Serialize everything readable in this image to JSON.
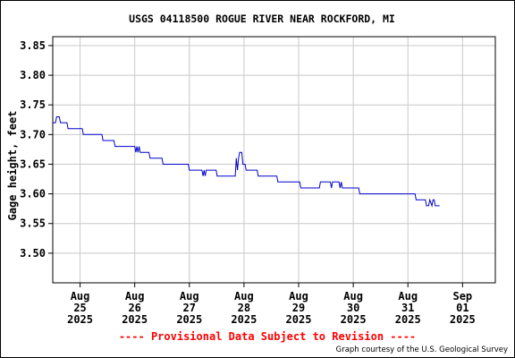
{
  "chart_data": {
    "type": "line",
    "title": "USGS 04118500 ROGUE RIVER NEAR ROCKFORD, MI",
    "ylabel": "Gage height, feet",
    "xlabel": "",
    "ylim": [
      3.45,
      3.865
    ],
    "yticks": [
      "3.85",
      "3.80",
      "3.75",
      "3.70",
      "3.65",
      "3.60",
      "3.55",
      "3.50"
    ],
    "ytick_values": [
      3.85,
      3.8,
      3.75,
      3.7,
      3.65,
      3.6,
      3.55,
      3.5
    ],
    "xlim_days": [
      24.5,
      32.6
    ],
    "xticks": [
      {
        "day": 25,
        "month": "Aug",
        "date": "25",
        "year": "2025"
      },
      {
        "day": 26,
        "month": "Aug",
        "date": "26",
        "year": "2025"
      },
      {
        "day": 27,
        "month": "Aug",
        "date": "27",
        "year": "2025"
      },
      {
        "day": 28,
        "month": "Aug",
        "date": "28",
        "year": "2025"
      },
      {
        "day": 29,
        "month": "Aug",
        "date": "29",
        "year": "2025"
      },
      {
        "day": 30,
        "month": "Aug",
        "date": "30",
        "year": "2025"
      },
      {
        "day": 31,
        "month": "Aug",
        "date": "31",
        "year": "2025"
      },
      {
        "day": 32,
        "month": "Sep",
        "date": "01",
        "year": "2025"
      }
    ],
    "grid": true,
    "line_color": "#0000cc",
    "series": [
      {
        "values": [
          [
            24.5,
            3.72
          ],
          [
            24.55,
            3.72
          ],
          [
            24.57,
            3.73
          ],
          [
            24.62,
            3.73
          ],
          [
            24.64,
            3.72
          ],
          [
            24.76,
            3.72
          ],
          [
            24.78,
            3.71
          ],
          [
            25.04,
            3.71
          ],
          [
            25.06,
            3.7
          ],
          [
            25.4,
            3.7
          ],
          [
            25.42,
            3.69
          ],
          [
            25.62,
            3.69
          ],
          [
            25.64,
            3.68
          ],
          [
            26.0,
            3.68
          ],
          [
            26.02,
            3.67
          ],
          [
            26.04,
            3.68
          ],
          [
            26.06,
            3.67
          ],
          [
            26.08,
            3.68
          ],
          [
            26.1,
            3.67
          ],
          [
            26.26,
            3.67
          ],
          [
            26.28,
            3.66
          ],
          [
            26.5,
            3.66
          ],
          [
            26.52,
            3.65
          ],
          [
            26.98,
            3.65
          ],
          [
            27.0,
            3.64
          ],
          [
            27.23,
            3.64
          ],
          [
            27.25,
            3.63
          ],
          [
            27.27,
            3.64
          ],
          [
            27.29,
            3.63
          ],
          [
            27.31,
            3.64
          ],
          [
            27.49,
            3.64
          ],
          [
            27.51,
            3.63
          ],
          [
            27.84,
            3.63
          ],
          [
            27.86,
            3.66
          ],
          [
            27.88,
            3.64
          ],
          [
            27.9,
            3.66
          ],
          [
            27.92,
            3.67
          ],
          [
            27.96,
            3.67
          ],
          [
            27.98,
            3.65
          ],
          [
            28.02,
            3.65
          ],
          [
            28.04,
            3.64
          ],
          [
            28.24,
            3.64
          ],
          [
            28.26,
            3.63
          ],
          [
            28.6,
            3.63
          ],
          [
            28.62,
            3.62
          ],
          [
            29.02,
            3.62
          ],
          [
            29.04,
            3.61
          ],
          [
            29.38,
            3.61
          ],
          [
            29.4,
            3.62
          ],
          [
            29.58,
            3.62
          ],
          [
            29.6,
            3.61
          ],
          [
            29.62,
            3.62
          ],
          [
            29.74,
            3.62
          ],
          [
            29.76,
            3.61
          ],
          [
            29.78,
            3.62
          ],
          [
            29.8,
            3.61
          ],
          [
            30.1,
            3.61
          ],
          [
            30.12,
            3.6
          ],
          [
            31.13,
            3.6
          ],
          [
            31.15,
            3.59
          ],
          [
            31.32,
            3.59
          ],
          [
            31.34,
            3.58
          ],
          [
            31.38,
            3.58
          ],
          [
            31.4,
            3.59
          ],
          [
            31.44,
            3.58
          ],
          [
            31.46,
            3.59
          ],
          [
            31.48,
            3.59
          ],
          [
            31.5,
            3.58
          ],
          [
            31.58,
            3.58
          ]
        ]
      }
    ]
  },
  "footer": {
    "provisional": "---- Provisional Data Subject to Revision ----",
    "credit": "Graph courtesy of the U.S. Geological Survey"
  }
}
